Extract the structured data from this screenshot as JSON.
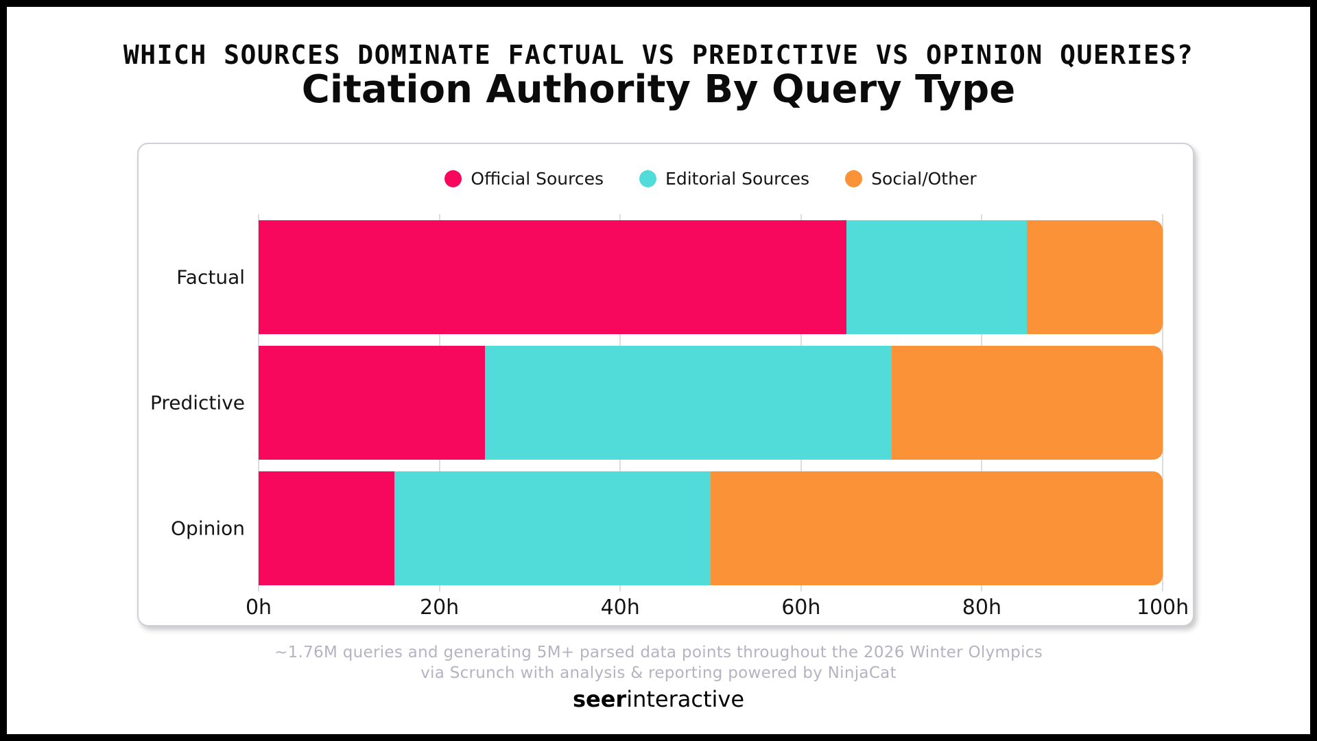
{
  "header": {
    "kicker": "WHICH SOURCES DOMINATE FACTUAL VS PREDICTIVE VS OPINION QUERIES?",
    "title": "Citation Authority By Query Type"
  },
  "chart_data": {
    "type": "bar",
    "orientation": "horizontal",
    "stacked": true,
    "title": "Citation Authority By Query Type",
    "categories": [
      "Factual",
      "Predictive",
      "Opinion"
    ],
    "series": [
      {
        "name": "Official Sources",
        "color": "#F8085C",
        "values": [
          65,
          25,
          15
        ]
      },
      {
        "name": "Editorial Sources",
        "color": "#51DBD9",
        "values": [
          20,
          45,
          35
        ]
      },
      {
        "name": "Social/Other",
        "color": "#FB9238",
        "values": [
          15,
          30,
          50
        ]
      }
    ],
    "x_axis": {
      "min": 0,
      "max": 100,
      "unit": "h",
      "tick_labels": [
        "0h",
        "20h",
        "40h",
        "60h",
        "80h",
        "100h"
      ],
      "tick_values": [
        0,
        20,
        40,
        60,
        80,
        100
      ]
    },
    "legend_position": "top",
    "grid": true,
    "grid_color": "#dcdcdc"
  },
  "footer": {
    "line1": "~1.76M queries and generating 5M+ parsed data points throughout the 2026 Winter Olympics",
    "line2": "via Scrunch with analysis & reporting powered by NinjaCat",
    "logo_bold": "seer",
    "logo_regular": "interactive"
  },
  "colors": {
    "official_sources": "#F8085C",
    "editorial_sources": "#51DBD9",
    "social_other": "#FB9238",
    "footer_text": "#b5b2c1",
    "frame": "#000000"
  }
}
